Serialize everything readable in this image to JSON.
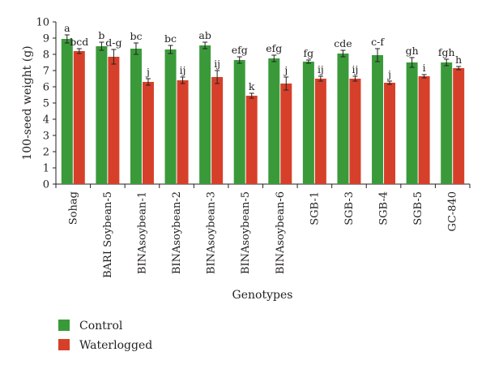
{
  "chart_data": {
    "type": "bar",
    "xlabel": "Genotypes",
    "ylabel": "100-seed weight (g)",
    "ylim": [
      0,
      10
    ],
    "yticks": [
      0,
      1,
      2,
      3,
      4,
      5,
      6,
      7,
      8,
      9,
      10
    ],
    "grid": false,
    "legend_position": "bottom-left",
    "categories": [
      "Sohag",
      "BARI Soybean-5",
      "BINAsoybean-1",
      "BINAsoybean-2",
      "BINAsoybean-3",
      "BINAsoybean-5",
      "BINAsoybean-6",
      "SGB-1",
      "SGB-3",
      "SGB-4",
      "SGB-5",
      "GC-840"
    ],
    "series": [
      {
        "name": "Control",
        "color": "#3a9a3a",
        "values": [
          8.95,
          8.5,
          8.35,
          8.3,
          8.55,
          7.65,
          7.75,
          7.55,
          8.05,
          7.95,
          7.5,
          7.5
        ],
        "errors": [
          0.25,
          0.25,
          0.35,
          0.25,
          0.2,
          0.2,
          0.2,
          0.1,
          0.2,
          0.4,
          0.3,
          0.2
        ],
        "labels": [
          "a",
          "b",
          "bc",
          "bc",
          "ab",
          "efg",
          "efg",
          "fg",
          "cde",
          "c-f",
          "gh",
          "fgh"
        ]
      },
      {
        "name": "Waterlogged",
        "color": "#d6402a",
        "values": [
          8.2,
          7.85,
          6.3,
          6.4,
          6.6,
          5.45,
          6.2,
          6.5,
          6.5,
          6.25,
          6.65,
          7.15
        ],
        "errors": [
          0.15,
          0.45,
          0.2,
          0.2,
          0.4,
          0.15,
          0.4,
          0.15,
          0.15,
          0.1,
          0.1,
          0.1
        ],
        "labels": [
          "bcd",
          "d-g",
          "j",
          "ij",
          "ij",
          "k",
          "j",
          "ij",
          "ij",
          "j",
          "i",
          "h"
        ]
      }
    ]
  }
}
